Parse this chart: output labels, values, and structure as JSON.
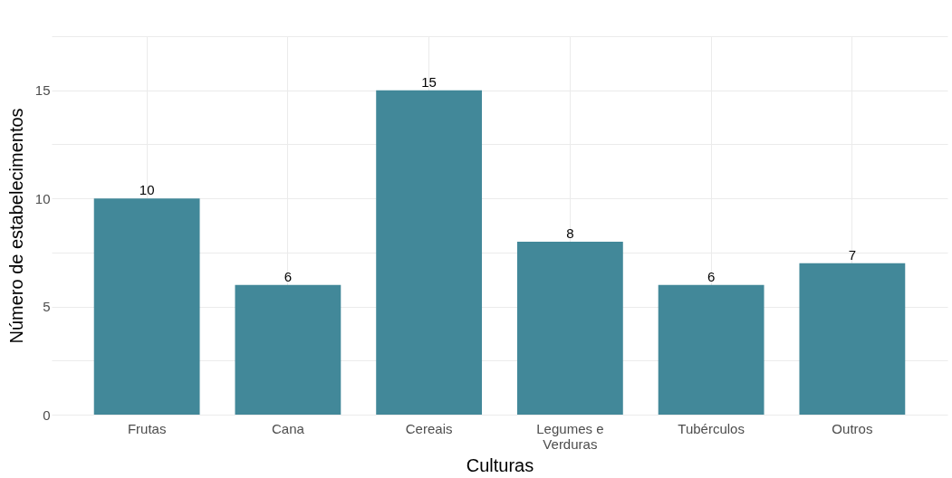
{
  "chart_data": {
    "type": "bar",
    "xlabel": "Culturas",
    "ylabel": "Número de estabelecimentos",
    "categories": [
      "Frutas",
      "Cana",
      "Cereais",
      "Legumes e Verduras",
      "Tubérculos",
      "Outros"
    ],
    "values": [
      10,
      6,
      15,
      8,
      6,
      7
    ],
    "color": "#428899",
    "data_labels": true,
    "grid": true,
    "ylim": [
      0,
      17.5
    ],
    "yticks": [
      0,
      {
        "value": 2.5,
        "label": null
      },
      5,
      {
        "value": 7.5,
        "label": null
      },
      10,
      {
        "value": 12.5,
        "label": null
      },
      15,
      {
        "value": 17.5,
        "label": null
      }
    ]
  }
}
